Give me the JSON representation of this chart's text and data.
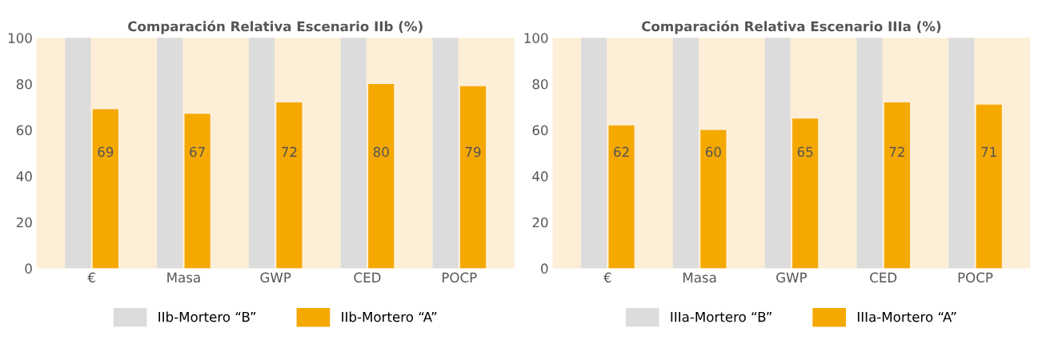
{
  "chart_data": [
    {
      "type": "bar",
      "title": "Comparación Relativa Escenario IIb (%)",
      "categories": [
        "€",
        "Masa",
        "GWP",
        "CED",
        "POCP"
      ],
      "ylim": [
        0,
        100
      ],
      "yticks": [
        0,
        20,
        40,
        60,
        80,
        100
      ],
      "legend": "bottom",
      "grid": false,
      "series": [
        {
          "name": "IIb-Mortero “B”",
          "color": "#dcdcdc",
          "values": [
            100,
            100,
            100,
            100,
            100
          ]
        },
        {
          "name": "IIb-Mortero “A”",
          "color": "#f5a800",
          "values": [
            69,
            67,
            72,
            80,
            79
          ],
          "value_labels": [
            "69",
            "67",
            "72",
            "80",
            "79"
          ]
        }
      ]
    },
    {
      "type": "bar",
      "title": "Comparación Relativa Escenario IIIa (%)",
      "categories": [
        "€",
        "Masa",
        "GWP",
        "CED",
        "POCP"
      ],
      "ylim": [
        0,
        100
      ],
      "yticks": [
        0,
        20,
        40,
        60,
        80,
        100
      ],
      "legend": "bottom",
      "grid": false,
      "series": [
        {
          "name": "IIIa-Mortero “B”",
          "color": "#dcdcdc",
          "values": [
            100,
            100,
            100,
            100,
            100
          ]
        },
        {
          "name": "IIIa-Mortero “A”",
          "color": "#f5a800",
          "values": [
            62,
            60,
            65,
            72,
            71
          ],
          "value_labels": [
            "62",
            "60",
            "65",
            "72",
            "71"
          ]
        }
      ]
    }
  ]
}
